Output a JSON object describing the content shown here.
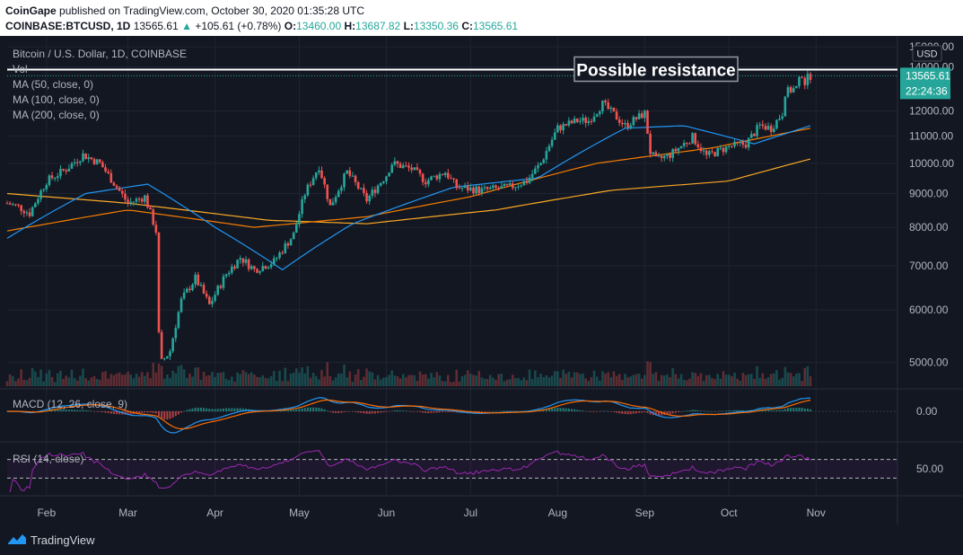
{
  "header": {
    "publisher": "CoinGape",
    "published_text": "published on TradingView.com, October 30, 2020 01:35:28 UTC",
    "symbol": "COINBASE:BTCUSD, 1D",
    "last": "13565.61",
    "arrow": "▲",
    "change": "+105.61 (+0.78%)",
    "o_label": "O:",
    "o": "13460.00",
    "h_label": "H:",
    "h": "13687.82",
    "l_label": "L:",
    "l": "13350.36",
    "c_label": "C:",
    "c": "13565.61"
  },
  "legend": {
    "title": "Bitcoin / U.S. Dollar, 1D, COINBASE",
    "vol": "Vol",
    "ma50": "MA (50, close, 0)",
    "ma100": "MA (100, close, 0)",
    "ma200": "MA (200, close, 0)",
    "macd": "MACD (12, 26, close, 9)",
    "rsi": "RSI (14, close)"
  },
  "annotation": {
    "text": "Possible resistance",
    "level": 13860
  },
  "price_axis": {
    "currency": "USD",
    "last_label": "13565.61",
    "countdown": "22:24:36",
    "ticks": [
      "15000.00",
      "14000.00",
      "12000.00",
      "11000.00",
      "10000.00",
      "9000.00",
      "8000.00",
      "7000.00",
      "6000.00",
      "5000.00"
    ],
    "macd_tick": "0.00",
    "rsi_tick": "50.00"
  },
  "time_axis": [
    "Feb",
    "Mar",
    "Apr",
    "May",
    "Jun",
    "Jul",
    "Aug",
    "Sep",
    "Oct",
    "Nov"
  ],
  "footer": {
    "brand": "TradingView"
  },
  "colors": {
    "up": "#26a69a",
    "down": "#ef5350",
    "ma50": "#2196f3",
    "ma100": "#f57c00",
    "ma200": "#f9a825",
    "rsi": "#9c27b0",
    "macd": "#2196f3",
    "signal": "#ff6d00"
  },
  "chart_data": {
    "type": "candlestick",
    "symbol": "BTCUSD",
    "x_range": [
      "2020-01-18",
      "2020-11-30"
    ],
    "y_range": [
      4600,
      15200
    ],
    "log_scale": true,
    "close_anchors": [
      [
        "2020-01-18",
        8700
      ],
      [
        "2020-01-22",
        8600
      ],
      [
        "2020-01-26",
        8400
      ],
      [
        "2020-02-01",
        9400
      ],
      [
        "2020-02-08",
        9800
      ],
      [
        "2020-02-14",
        10300
      ],
      [
        "2020-02-20",
        10000
      ],
      [
        "2020-02-26",
        9200
      ],
      [
        "2020-03-01",
        8700
      ],
      [
        "2020-03-07",
        8900
      ],
      [
        "2020-03-11",
        7900
      ],
      [
        "2020-03-12",
        5500
      ],
      [
        "2020-03-13",
        5000
      ],
      [
        "2020-03-16",
        5200
      ],
      [
        "2020-03-20",
        6200
      ],
      [
        "2020-03-25",
        6700
      ],
      [
        "2020-03-30",
        6100
      ],
      [
        "2020-04-05",
        6800
      ],
      [
        "2020-04-10",
        7200
      ],
      [
        "2020-04-15",
        6900
      ],
      [
        "2020-04-22",
        7100
      ],
      [
        "2020-04-29",
        7800
      ],
      [
        "2020-05-03",
        9000
      ],
      [
        "2020-05-08",
        9900
      ],
      [
        "2020-05-12",
        8600
      ],
      [
        "2020-05-18",
        9700
      ],
      [
        "2020-05-25",
        8800
      ],
      [
        "2020-06-01",
        9600
      ],
      [
        "2020-06-03",
        10000
      ],
      [
        "2020-06-10",
        9800
      ],
      [
        "2020-06-15",
        9400
      ],
      [
        "2020-06-22",
        9700
      ],
      [
        "2020-06-26",
        9200
      ],
      [
        "2020-07-05",
        9100
      ],
      [
        "2020-07-15",
        9200
      ],
      [
        "2020-07-21",
        9400
      ],
      [
        "2020-07-26",
        10000
      ],
      [
        "2020-08-01",
        11300
      ],
      [
        "2020-08-08",
        11600
      ],
      [
        "2020-08-12",
        11600
      ],
      [
        "2020-08-17",
        12300
      ],
      [
        "2020-08-25",
        11400
      ],
      [
        "2020-09-01",
        11900
      ],
      [
        "2020-09-03",
        10400
      ],
      [
        "2020-09-05",
        10100
      ],
      [
        "2020-09-10",
        10300
      ],
      [
        "2020-09-18",
        10950
      ],
      [
        "2020-09-23",
        10250
      ],
      [
        "2020-10-01",
        10600
      ],
      [
        "2020-10-07",
        10700
      ],
      [
        "2020-10-12",
        11400
      ],
      [
        "2020-10-16",
        11300
      ],
      [
        "2020-10-20",
        11900
      ],
      [
        "2020-10-21",
        12800
      ],
      [
        "2020-10-25",
        13000
      ],
      [
        "2020-10-27",
        13650
      ],
      [
        "2020-10-28",
        13250
      ],
      [
        "2020-10-29",
        13460
      ],
      [
        "2020-10-30",
        13565.61
      ]
    ],
    "ma_anchors": {
      "ma50": [
        [
          "2020-01-18",
          7700
        ],
        [
          "2020-02-15",
          9000
        ],
        [
          "2020-03-08",
          9300
        ],
        [
          "2020-04-01",
          8000
        ],
        [
          "2020-04-25",
          6900
        ],
        [
          "2020-05-20",
          8100
        ],
        [
          "2020-06-25",
          9200
        ],
        [
          "2020-07-25",
          9500
        ],
        [
          "2020-08-25",
          11300
        ],
        [
          "2020-09-15",
          11400
        ],
        [
          "2020-10-10",
          10700
        ],
        [
          "2020-10-30",
          11400
        ]
      ],
      "ma100": [
        [
          "2020-01-18",
          7900
        ],
        [
          "2020-03-01",
          8500
        ],
        [
          "2020-04-15",
          8000
        ],
        [
          "2020-05-25",
          8300
        ],
        [
          "2020-07-01",
          8900
        ],
        [
          "2020-08-15",
          10000
        ],
        [
          "2020-09-25",
          10550
        ],
        [
          "2020-10-30",
          11300
        ]
      ],
      "ma200": [
        [
          "2020-01-18",
          9000
        ],
        [
          "2020-03-01",
          8700
        ],
        [
          "2020-04-20",
          8200
        ],
        [
          "2020-05-25",
          8100
        ],
        [
          "2020-07-10",
          8500
        ],
        [
          "2020-08-20",
          9100
        ],
        [
          "2020-10-01",
          9400
        ],
        [
          "2020-10-30",
          10150
        ]
      ]
    },
    "rsi_range": [
      0,
      100
    ],
    "rsi_bands": [
      30,
      70
    ]
  }
}
